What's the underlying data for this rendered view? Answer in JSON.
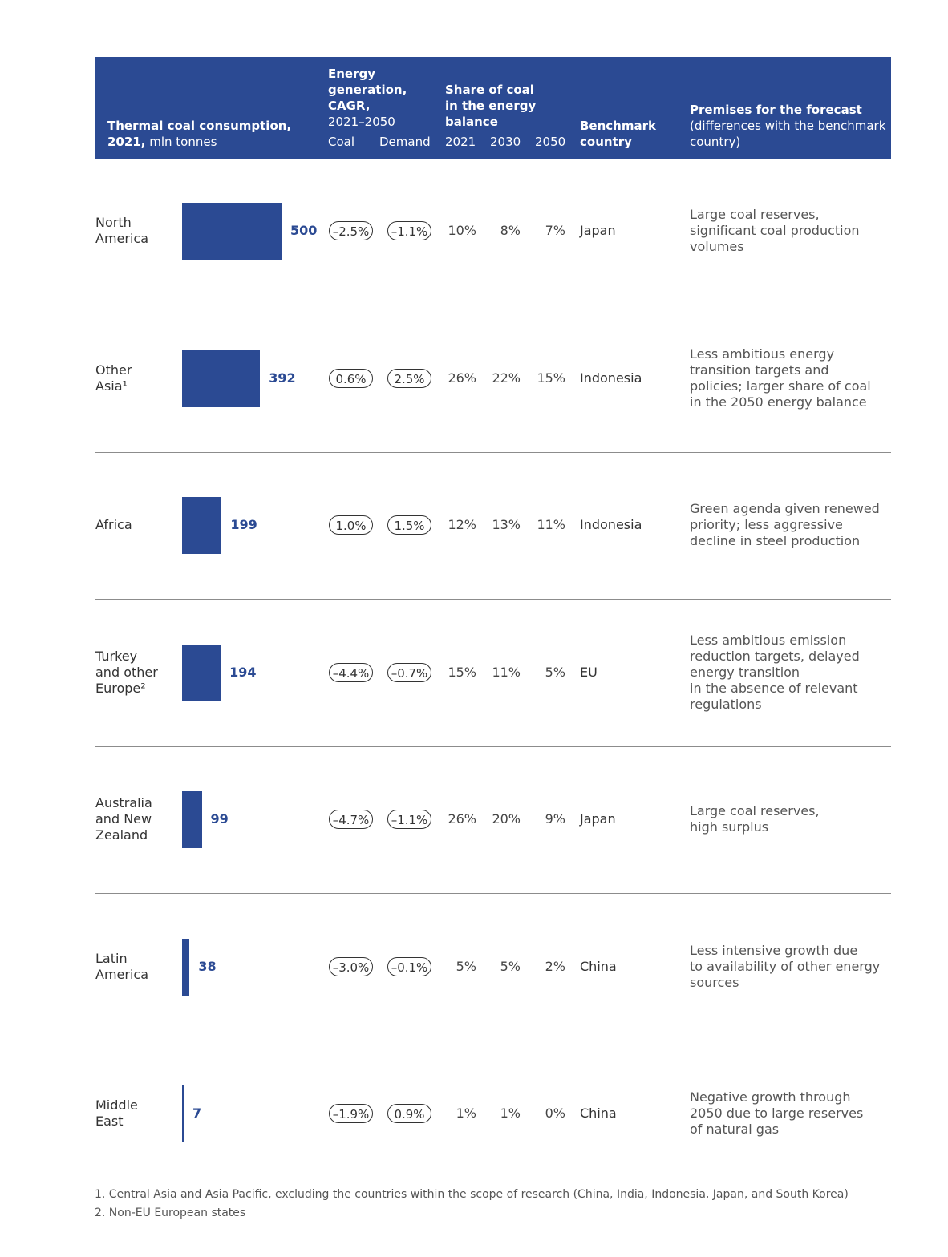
{
  "header": {
    "col1_bold": "Thermal coal consumption, 2021,",
    "col1_normal": " mln tonnes",
    "col2_bold": "Energy generation, CAGR,",
    "col2_normal": "2021–2050",
    "col2_sub1": "Coal",
    "col2_sub2": "Demand",
    "col3": "Share of coal in the energy balance",
    "col3_years": [
      "2021",
      "2030",
      "2050"
    ],
    "col4": "Benchmark country",
    "col5_bold": "Premises for the forecast",
    "col5_normal": "(differences with the benchmark country)"
  },
  "chart_data": {
    "type": "bar",
    "orientation": "horizontal",
    "title": "Thermal coal consumption, 2021, mln tonnes",
    "categories": [
      "North America",
      "Other Asia¹",
      "Africa",
      "Turkey and other Europe²",
      "Australia and New Zealand",
      "Latin America",
      "Middle East"
    ],
    "values": [
      500,
      392,
      199,
      194,
      99,
      38,
      7
    ],
    "value_labels": [
      "500",
      "392",
      "199",
      "194",
      "99",
      "38",
      "7"
    ],
    "xlim": [
      0,
      500
    ],
    "grid": false,
    "bar_color": "#2b4a93"
  },
  "rows": [
    {
      "region": "North America",
      "coal": "–2.5%",
      "demand": "–1.1%",
      "s2021": "10%",
      "s2030": "8%",
      "s2050": "7%",
      "bench": "Japan",
      "premises": "Large coal reserves, significant coal production volumes"
    },
    {
      "region": "Other Asia¹",
      "coal": "0.6%",
      "demand": "2.5%",
      "s2021": "26%",
      "s2030": "22%",
      "s2050": "15%",
      "bench": "Indonesia",
      "premises": "Less ambitious energy transition targets and policies; larger share of coal in the 2050 energy balance"
    },
    {
      "region": "Africa",
      "coal": "1.0%",
      "demand": "1.5%",
      "s2021": "12%",
      "s2030": "13%",
      "s2050": "11%",
      "bench": "Indonesia",
      "premises": "Green agenda given renewed priority; less aggressive decline in steel production"
    },
    {
      "region": "Turkey and other Europe²",
      "coal": "–4.4%",
      "demand": "–0.7%",
      "s2021": "15%",
      "s2030": "11%",
      "s2050": "5%",
      "bench": "EU",
      "premises": "Less ambitious emission reduction targets, delayed energy transition in the absence of relevant regulations"
    },
    {
      "region": "Australia and New Zealand",
      "coal": "–4.7%",
      "demand": "–1.1%",
      "s2021": "26%",
      "s2030": "20%",
      "s2050": "9%",
      "bench": "Japan",
      "premises": "Large coal reserves, high surplus"
    },
    {
      "region": "Latin America",
      "coal": "–3.0%",
      "demand": "–0.1%",
      "s2021": "5%",
      "s2030": "5%",
      "s2050": "2%",
      "bench": "China",
      "premises": "Less intensive growth due to availability of other energy sources"
    },
    {
      "region": "Middle East",
      "coal": "–1.9%",
      "demand": "0.9%",
      "s2021": "1%",
      "s2030": "1%",
      "s2050": "0%",
      "bench": "China",
      "premises": "Negative growth through 2050 due to large reserves of natural gas"
    }
  ],
  "footnotes": [
    "1.  Central Asia and Asia Pacific, excluding the countries within the scope of research (China, India, Indonesia, Japan, and South Korea)",
    "2. Non-EU European states"
  ]
}
